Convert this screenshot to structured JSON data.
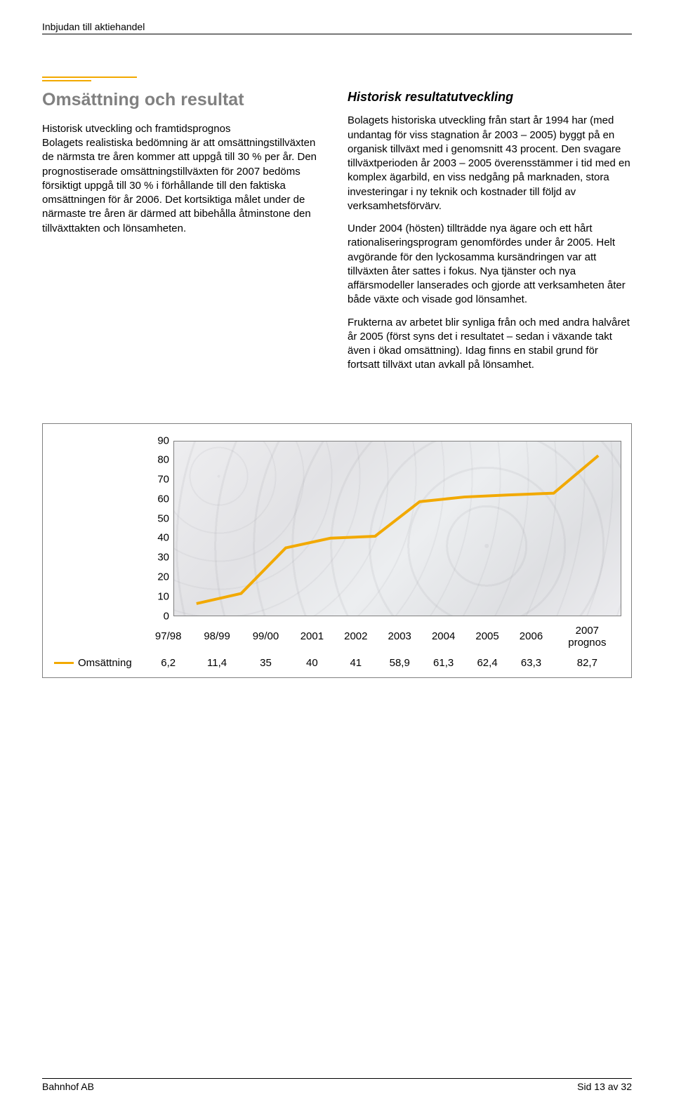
{
  "header": {
    "label": "Inbjudan till aktiehandel"
  },
  "left": {
    "title": "Omsättning och resultat",
    "subtitle": "Historisk utveckling och framtidsprognos",
    "p1": "Bolagets realistiska bedömning är att omsättningstillväxten de närmsta tre åren kommer att uppgå till 30 % per år. Den prognostiserade omsättningstillväxten för 2007 bedöms försiktigt uppgå till 30 % i förhållande till den faktiska omsättningen för år 2006. Det kortsiktiga målet under de närmaste tre åren är därmed att bibehålla åtminstone den tillväxttakten och lönsamheten."
  },
  "right": {
    "title": "Historisk resultatutveckling",
    "p1": "Bolagets historiska utveckling från start år 1994 har (med undantag för viss stagnation år 2003 – 2005) byggt på en organisk tillväxt med i genomsnitt 43 procent. Den svagare tillväxtperioden år 2003 – 2005 överensstämmer i tid med en komplex ägarbild, en viss nedgång på marknaden, stora investeringar i ny teknik och kostnader till följd av verksamhetsförvärv.",
    "p2": "Under 2004 (hösten) tillträdde nya ägare och ett hårt rationaliseringsprogram genomfördes under år 2005. Helt avgörande för den lyckosamma kursändringen var att tillväxten åter sattes i fokus. Nya tjänster och nya affärsmodeller lanserades och gjorde att verksamheten åter både växte och visade god lönsamhet.",
    "p3": "Frukterna av arbetet blir synliga från och med andra halvåret år 2005 (först syns det i resultatet – sedan i växande takt även i ökad omsättning). Idag finns en stabil grund för fortsatt tillväxt utan avkall på lönsamhet."
  },
  "chart": {
    "type": "line",
    "series_label": "Omsättning",
    "line_color": "#f2a900",
    "line_width": 4,
    "marker_size": 0,
    "ylim": [
      0,
      90
    ],
    "ytick_step": 10,
    "yticks": [
      0,
      10,
      20,
      30,
      40,
      50,
      60,
      70,
      80,
      90
    ],
    "categories": [
      "97/98",
      "98/99",
      "99/00",
      "2001",
      "2002",
      "2003",
      "2004",
      "2005",
      "2006",
      "2007 prognos"
    ],
    "values": [
      6.2,
      11.4,
      35,
      40,
      41,
      58.9,
      61.3,
      62.4,
      63.3,
      82.7
    ],
    "value_labels": [
      "6,2",
      "11,4",
      "35",
      "40",
      "41",
      "58,9",
      "61,3",
      "62,4",
      "63,3",
      "82,7"
    ],
    "plot_bg": "#e8e8ea",
    "border_color": "#808080",
    "label_fontsize": 15
  },
  "footer": {
    "left": "Bahnhof AB",
    "right": "Sid 13 av 32"
  },
  "colors": {
    "accent": "#f2a900",
    "title_gray": "#808080",
    "text": "#000000"
  }
}
